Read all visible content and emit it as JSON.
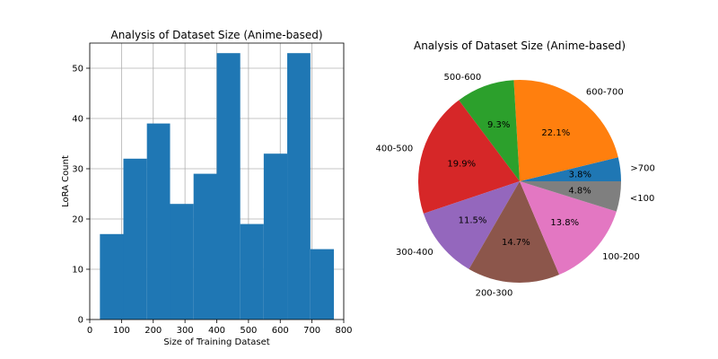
{
  "chart_data": [
    {
      "type": "bar",
      "title": "Analysis of Dataset Size (Anime-based)",
      "xlabel": "Size of Training Dataset",
      "ylabel": "LoRA Count",
      "xlim": [
        0,
        800
      ],
      "ylim": [
        0,
        55
      ],
      "x_ticks": [
        0,
        100,
        200,
        300,
        400,
        500,
        600,
        700,
        800
      ],
      "y_ticks": [
        0,
        10,
        20,
        30,
        40,
        50
      ],
      "grid": true,
      "bins": [
        {
          "start": 32,
          "end": 106,
          "value": 17
        },
        {
          "start": 106,
          "end": 180,
          "value": 32
        },
        {
          "start": 180,
          "end": 253,
          "value": 39
        },
        {
          "start": 253,
          "end": 327,
          "value": 23
        },
        {
          "start": 327,
          "end": 400,
          "value": 29
        },
        {
          "start": 400,
          "end": 474,
          "value": 53
        },
        {
          "start": 474,
          "end": 548,
          "value": 19
        },
        {
          "start": 548,
          "end": 622,
          "value": 33
        },
        {
          "start": 622,
          "end": 695,
          "value": 53
        },
        {
          "start": 695,
          "end": 769,
          "value": 14
        }
      ],
      "color": "#1f77b4"
    },
    {
      "type": "pie",
      "title": "Analysis of Dataset Size (Anime-based)",
      "slices": [
        {
          "label": ">700",
          "value": 3.8,
          "pct": "3.8%",
          "color": "#1f77b4"
        },
        {
          "label": "600-700",
          "value": 22.1,
          "pct": "22.1%",
          "color": "#ff7f0e"
        },
        {
          "label": "500-600",
          "value": 9.3,
          "pct": "9.3%",
          "color": "#2ca02c"
        },
        {
          "label": "400-500",
          "value": 19.9,
          "pct": "19.9%",
          "color": "#d62728"
        },
        {
          "label": "300-400",
          "value": 11.5,
          "pct": "11.5%",
          "color": "#9467bd"
        },
        {
          "label": "200-300",
          "value": 14.7,
          "pct": "14.7%",
          "color": "#8c564b"
        },
        {
          "label": "100-200",
          "value": 13.8,
          "pct": "13.8%",
          "color": "#e377c2"
        },
        {
          "label": "<100",
          "value": 4.8,
          "pct": "4.8%",
          "color": "#7f7f7f"
        }
      ]
    }
  ]
}
